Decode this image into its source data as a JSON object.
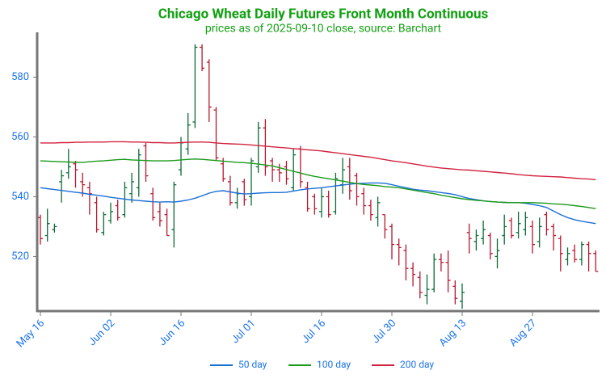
{
  "chart_data": {
    "type": "ohlc",
    "title": "Chicago Wheat Daily Futures Front Month Continuous",
    "subtitle": "prices as of 2025-09-10 close, source: Barchart",
    "categories": [
      "May 16",
      null,
      null,
      null,
      null,
      null,
      null,
      null,
      null,
      null,
      "Jun 02",
      null,
      null,
      null,
      null,
      null,
      null,
      null,
      null,
      null,
      "Jun 16",
      null,
      null,
      null,
      null,
      null,
      null,
      null,
      null,
      null,
      "Jul 01",
      null,
      null,
      null,
      null,
      null,
      null,
      null,
      null,
      null,
      "Jul 16",
      null,
      null,
      null,
      null,
      null,
      null,
      null,
      null,
      null,
      "Jul 30",
      null,
      null,
      null,
      null,
      null,
      null,
      null,
      null,
      null,
      "Aug 13",
      null,
      null,
      null,
      null,
      null,
      null,
      null,
      null,
      null,
      "Aug 27",
      null,
      null,
      null,
      null,
      null,
      null,
      null,
      null,
      null
    ],
    "open": [
      533,
      527,
      529,
      545,
      548,
      551,
      545,
      543,
      538,
      528,
      532,
      537,
      534,
      541,
      543,
      557,
      541,
      535,
      534,
      529,
      549,
      556,
      565,
      590,
      585,
      569,
      551,
      545,
      538,
      545,
      540,
      550,
      563,
      552,
      549,
      550,
      543,
      556,
      543,
      540,
      535,
      540,
      535,
      544,
      550,
      547,
      541,
      537,
      533,
      534,
      530,
      524,
      522,
      516,
      513,
      507,
      509,
      519,
      518,
      510,
      505,
      528,
      525,
      526,
      527,
      520,
      527,
      532,
      528,
      529,
      530,
      525,
      534,
      530,
      526,
      519,
      522,
      519,
      524,
      521
    ],
    "high": [
      534,
      536,
      531,
      549,
      556,
      552,
      548,
      545,
      540,
      535,
      538,
      539,
      545,
      548,
      556,
      558,
      543,
      538,
      536,
      545,
      560,
      568,
      591,
      591,
      586,
      570,
      553,
      547,
      543,
      546,
      553,
      565,
      566,
      553,
      551,
      552,
      556,
      557,
      545,
      541,
      543,
      542,
      548,
      553,
      553,
      548,
      543,
      539,
      540,
      534,
      531,
      526,
      524,
      518,
      515,
      514,
      521,
      521,
      522,
      512,
      511,
      531,
      529,
      532,
      528,
      526,
      534,
      533,
      535,
      535,
      532,
      533,
      535,
      531,
      527,
      523,
      524,
      525,
      525,
      522
    ],
    "low": [
      524,
      525,
      528,
      538,
      546,
      543,
      540,
      534,
      528,
      527,
      531,
      532,
      533,
      538,
      540,
      545,
      532,
      530,
      527,
      523,
      547,
      554,
      563,
      582,
      565,
      552,
      545,
      537,
      536,
      537,
      537,
      548,
      547,
      545,
      545,
      544,
      542,
      543,
      535,
      534,
      533,
      533,
      534,
      541,
      539,
      537,
      534,
      532,
      530,
      526,
      519,
      517,
      512,
      510,
      506,
      504,
      508,
      515,
      508,
      504,
      502.5,
      521,
      522,
      524,
      519,
      516,
      524,
      526,
      526,
      527,
      521,
      523,
      527,
      522,
      515,
      517,
      518,
      517,
      515,
      515
    ],
    "close": [
      526,
      531,
      530,
      547,
      550,
      549,
      544,
      541,
      529,
      534,
      535,
      533,
      543,
      545,
      554,
      547,
      533,
      532,
      527,
      544,
      558,
      564,
      590,
      583,
      570,
      553,
      546,
      538,
      541,
      539,
      552,
      563,
      550,
      549,
      548,
      546,
      554,
      545,
      536,
      536,
      540,
      534,
      546,
      549,
      542,
      540,
      537,
      534,
      538,
      529,
      524,
      523,
      516,
      514,
      508,
      509,
      519,
      518,
      512,
      506,
      508,
      526,
      527,
      529,
      521,
      522,
      530,
      527,
      531,
      533,
      524,
      530,
      529,
      527,
      521,
      521,
      519,
      524,
      521,
      515
    ],
    "up_color": "#0b6b34",
    "down_color": "#b8162e",
    "series": [
      {
        "name": "50 day",
        "color": "#1a6fd6",
        "values": [
          543,
          542.7,
          542.4,
          542.1,
          541.8,
          541.5,
          541.2,
          540.8,
          540.5,
          540.2,
          539.8,
          539.5,
          539.2,
          538.9,
          538.7,
          538.5,
          538.3,
          538.2,
          538.3,
          538.2,
          538.5,
          538.9,
          539.5,
          540.3,
          541.2,
          541.8,
          542,
          541.6,
          541.2,
          540.9,
          541,
          541.2,
          541.3,
          541.4,
          541.4,
          541.5,
          541.9,
          542.3,
          542.6,
          542.8,
          543,
          543.3,
          543.6,
          543.9,
          544.2,
          544.4,
          544.5,
          544.6,
          544.6,
          544.5,
          544,
          543.5,
          543,
          542.5,
          542.2,
          542,
          541.7,
          541.4,
          541.1,
          540.7,
          540,
          539.4,
          539,
          538.6,
          538.4,
          538.2,
          538.1,
          538,
          538,
          537.8,
          537.4,
          537,
          536.4,
          535.2,
          534,
          533,
          532.3,
          531.8,
          531.4,
          531
        ]
      },
      {
        "name": "100 day",
        "color": "#1a9a1a",
        "values": [
          552,
          551.9,
          551.8,
          551.7,
          551.6,
          551.5,
          551.5,
          551.7,
          551.9,
          552,
          552.2,
          552.4,
          552.5,
          552.3,
          552.2,
          552.1,
          552,
          552,
          552,
          552.1,
          552.3,
          552.5,
          552.6,
          552.5,
          552.3,
          552.1,
          551.9,
          551.7,
          551.5,
          551.4,
          551.2,
          550.9,
          550.6,
          550.3,
          549.7,
          549.1,
          548.5,
          547.9,
          547.3,
          546.8,
          546.4,
          546,
          545.6,
          545.2,
          544.8,
          544.4,
          544.1,
          543.9,
          543.7,
          543.4,
          543.2,
          543,
          542.6,
          542.2,
          541.8,
          541.4,
          541,
          540.5,
          540.1,
          539.7,
          539.3,
          539,
          538.8,
          538.6,
          538.4,
          538.2,
          538.1,
          538,
          538,
          538,
          538,
          537.9,
          537.8,
          537.6,
          537.5,
          537.3,
          537,
          536.7,
          536.4,
          536
        ]
      },
      {
        "name": "200 day",
        "color": "#d2223f",
        "values": [
          558,
          558,
          558,
          558.1,
          558.1,
          558.2,
          558.2,
          558.3,
          558.3,
          558.3,
          558.4,
          558.4,
          558.4,
          558.3,
          558.3,
          558.2,
          558.1,
          558.1,
          558,
          558,
          558.1,
          558.2,
          558.3,
          558.3,
          558.2,
          558,
          557.8,
          557.7,
          557.6,
          557.5,
          557.3,
          557.1,
          556.9,
          556.7,
          556.5,
          556.3,
          556.1,
          555.9,
          555.7,
          555.5,
          555.3,
          555,
          554.7,
          554.4,
          554.1,
          553.8,
          553.5,
          553.2,
          552.8,
          552.4,
          552,
          551.7,
          551.4,
          551,
          550.6,
          550.2,
          549.9,
          549.6,
          549.4,
          549.2,
          549,
          548.9,
          548.7,
          548.5,
          548.3,
          548.1,
          547.9,
          547.7,
          547.4,
          547.2,
          547,
          546.9,
          546.8,
          546.7,
          546.6,
          546.4,
          546.2,
          546,
          545.9,
          545.7
        ]
      }
    ],
    "ylim": [
      502,
      595
    ],
    "yticks": [
      520,
      540,
      560,
      580
    ],
    "legend": "bottom"
  }
}
